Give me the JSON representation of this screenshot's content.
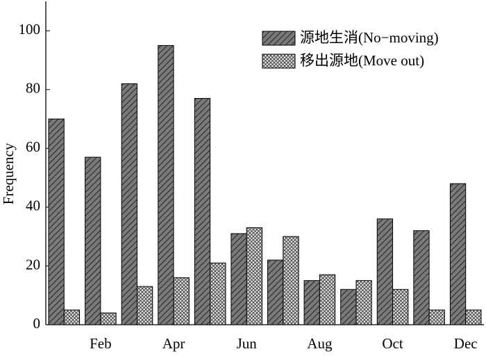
{
  "chart_data": {
    "type": "bar",
    "y_label": "Frequency",
    "categories": [
      null,
      "Feb",
      null,
      "Apr",
      null,
      "Jun",
      null,
      "Aug",
      null,
      "Oct",
      null,
      "Dec"
    ],
    "series": [
      {
        "name": "源地生消(No−moving)",
        "color": "#7a7a7a",
        "values": [
          70,
          57,
          82,
          95,
          77,
          31,
          22,
          15,
          12,
          36,
          32,
          48
        ]
      },
      {
        "name": "移出源地(Move out)",
        "color": "#e0e0e0",
        "values": [
          5,
          4,
          13,
          16,
          21,
          33,
          30,
          17,
          15,
          12,
          5,
          5
        ]
      }
    ],
    "ylim": [
      0,
      110
    ],
    "yticks": [
      0,
      20,
      40,
      60,
      80,
      100
    ],
    "legend": "upper right"
  }
}
